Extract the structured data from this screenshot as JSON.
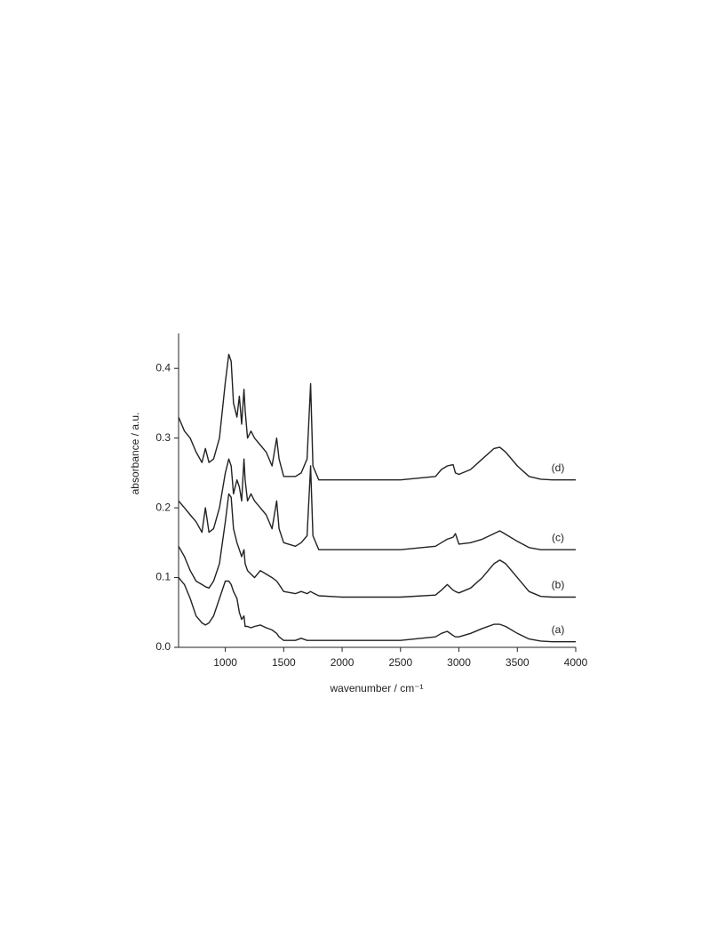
{
  "chart_data": {
    "type": "line",
    "xlabel": "wavenumber / cm⁻¹",
    "ylabel": "absorbance / a.u.",
    "xlim": [
      600,
      4000
    ],
    "ylim": [
      0,
      0.45
    ],
    "xticks": [
      1000,
      1500,
      2000,
      2500,
      3000,
      3500,
      4000
    ],
    "yticks": [
      {
        "value": 0,
        "label": "0.0"
      },
      0.1,
      0.2,
      0.3,
      0.4
    ],
    "grid": false,
    "x": [
      600,
      650,
      700,
      750,
      800,
      830,
      860,
      900,
      950,
      1000,
      1030,
      1050,
      1070,
      1100,
      1120,
      1140,
      1160,
      1170,
      1190,
      1220,
      1250,
      1300,
      1350,
      1400,
      1440,
      1460,
      1500,
      1600,
      1650,
      1700,
      1730,
      1750,
      1800,
      2000,
      2500,
      2800,
      2850,
      2900,
      2950,
      2970,
      3000,
      3100,
      3200,
      3300,
      3350,
      3400,
      3500,
      3600,
      3700,
      3800,
      4000
    ],
    "series": [
      {
        "name": "(a)",
        "color": "#222222",
        "values": [
          0.1,
          0.09,
          0.07,
          0.045,
          0.035,
          0.032,
          0.035,
          0.045,
          0.07,
          0.095,
          0.095,
          0.09,
          0.08,
          0.07,
          0.05,
          0.04,
          0.045,
          0.03,
          0.03,
          0.028,
          0.03,
          0.032,
          0.028,
          0.025,
          0.02,
          0.015,
          0.01,
          0.01,
          0.013,
          0.01,
          0.01,
          0.01,
          0.01,
          0.01,
          0.01,
          0.015,
          0.02,
          0.023,
          0.017,
          0.015,
          0.015,
          0.02,
          0.027,
          0.033,
          0.033,
          0.03,
          0.02,
          0.012,
          0.009,
          0.008,
          0.008
        ]
      },
      {
        "name": "(b)",
        "color": "#222222",
        "values": [
          0.145,
          0.13,
          0.11,
          0.095,
          0.09,
          0.087,
          0.085,
          0.095,
          0.12,
          0.18,
          0.22,
          0.215,
          0.17,
          0.15,
          0.14,
          0.13,
          0.14,
          0.12,
          0.11,
          0.105,
          0.1,
          0.11,
          0.105,
          0.1,
          0.095,
          0.09,
          0.08,
          0.077,
          0.08,
          0.077,
          0.08,
          0.078,
          0.074,
          0.072,
          0.072,
          0.075,
          0.082,
          0.09,
          0.082,
          0.08,
          0.078,
          0.085,
          0.1,
          0.12,
          0.125,
          0.12,
          0.1,
          0.08,
          0.073,
          0.072,
          0.072
        ]
      },
      {
        "name": "(c)",
        "color": "#222222",
        "values": [
          0.21,
          0.2,
          0.19,
          0.18,
          0.165,
          0.2,
          0.165,
          0.17,
          0.2,
          0.25,
          0.27,
          0.26,
          0.22,
          0.24,
          0.23,
          0.21,
          0.27,
          0.24,
          0.21,
          0.22,
          0.21,
          0.2,
          0.19,
          0.17,
          0.21,
          0.17,
          0.15,
          0.145,
          0.15,
          0.16,
          0.26,
          0.16,
          0.14,
          0.14,
          0.14,
          0.145,
          0.15,
          0.155,
          0.158,
          0.163,
          0.148,
          0.15,
          0.155,
          0.163,
          0.167,
          0.162,
          0.152,
          0.143,
          0.14,
          0.14,
          0.14
        ]
      },
      {
        "name": "(d)",
        "color": "#222222",
        "values": [
          0.33,
          0.31,
          0.3,
          0.28,
          0.265,
          0.285,
          0.265,
          0.27,
          0.3,
          0.38,
          0.42,
          0.41,
          0.35,
          0.33,
          0.36,
          0.32,
          0.37,
          0.34,
          0.3,
          0.31,
          0.3,
          0.29,
          0.28,
          0.26,
          0.3,
          0.27,
          0.245,
          0.245,
          0.25,
          0.27,
          0.378,
          0.26,
          0.24,
          0.24,
          0.24,
          0.245,
          0.255,
          0.26,
          0.262,
          0.25,
          0.248,
          0.255,
          0.27,
          0.285,
          0.287,
          0.28,
          0.26,
          0.245,
          0.241,
          0.24,
          0.24
        ]
      }
    ]
  }
}
